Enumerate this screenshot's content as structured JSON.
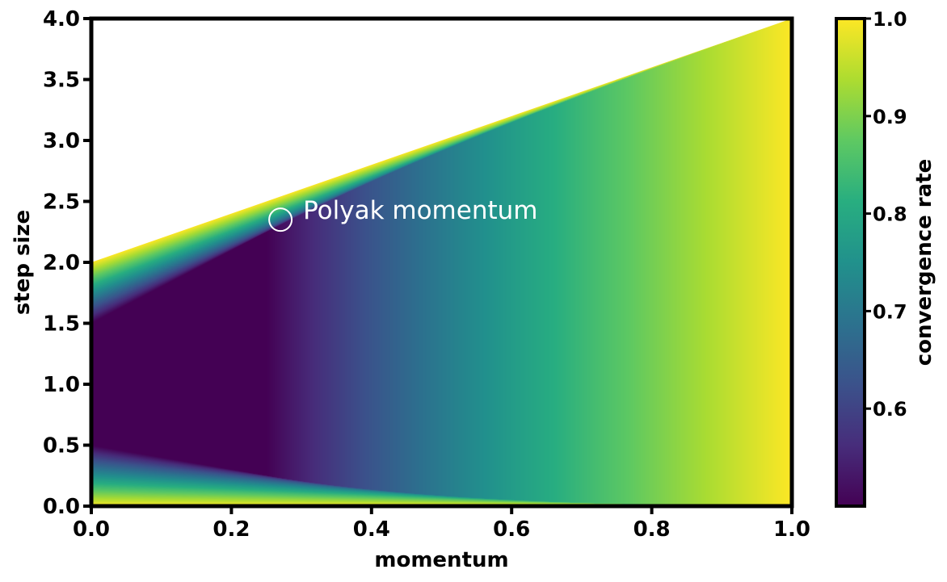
{
  "chart_data": {
    "type": "heatmap",
    "title": "",
    "xlabel": "momentum",
    "ylabel": "step size",
    "colorbar_label": "convergence rate",
    "xlim": [
      0.0,
      1.0
    ],
    "ylim": [
      0.0,
      4.0
    ],
    "x_ticks": [
      0.0,
      0.2,
      0.4,
      0.6,
      0.8,
      1.0
    ],
    "x_tick_labels": [
      "0.0",
      "0.2",
      "0.4",
      "0.6",
      "0.8",
      "1.0"
    ],
    "y_ticks": [
      0.0,
      0.5,
      1.0,
      1.5,
      2.0,
      2.5,
      3.0,
      3.5,
      4.0
    ],
    "y_tick_labels": [
      "0.0",
      "0.5",
      "1.0",
      "1.5",
      "2.0",
      "2.5",
      "3.0",
      "3.5",
      "4.0"
    ],
    "colorbar_range": [
      0.5,
      1.0
    ],
    "colorbar_ticks": [
      0.6,
      0.7,
      0.8,
      0.9,
      1.0
    ],
    "colorbar_tick_labels": [
      "0.6",
      "0.7",
      "0.8",
      "0.9",
      "1.0"
    ],
    "colormap": "viridis",
    "stable_region": "step size < 2 × (1 + momentum)",
    "annotation": {
      "text": "Polyak momentum",
      "x": 0.27,
      "y": 2.35
    }
  }
}
